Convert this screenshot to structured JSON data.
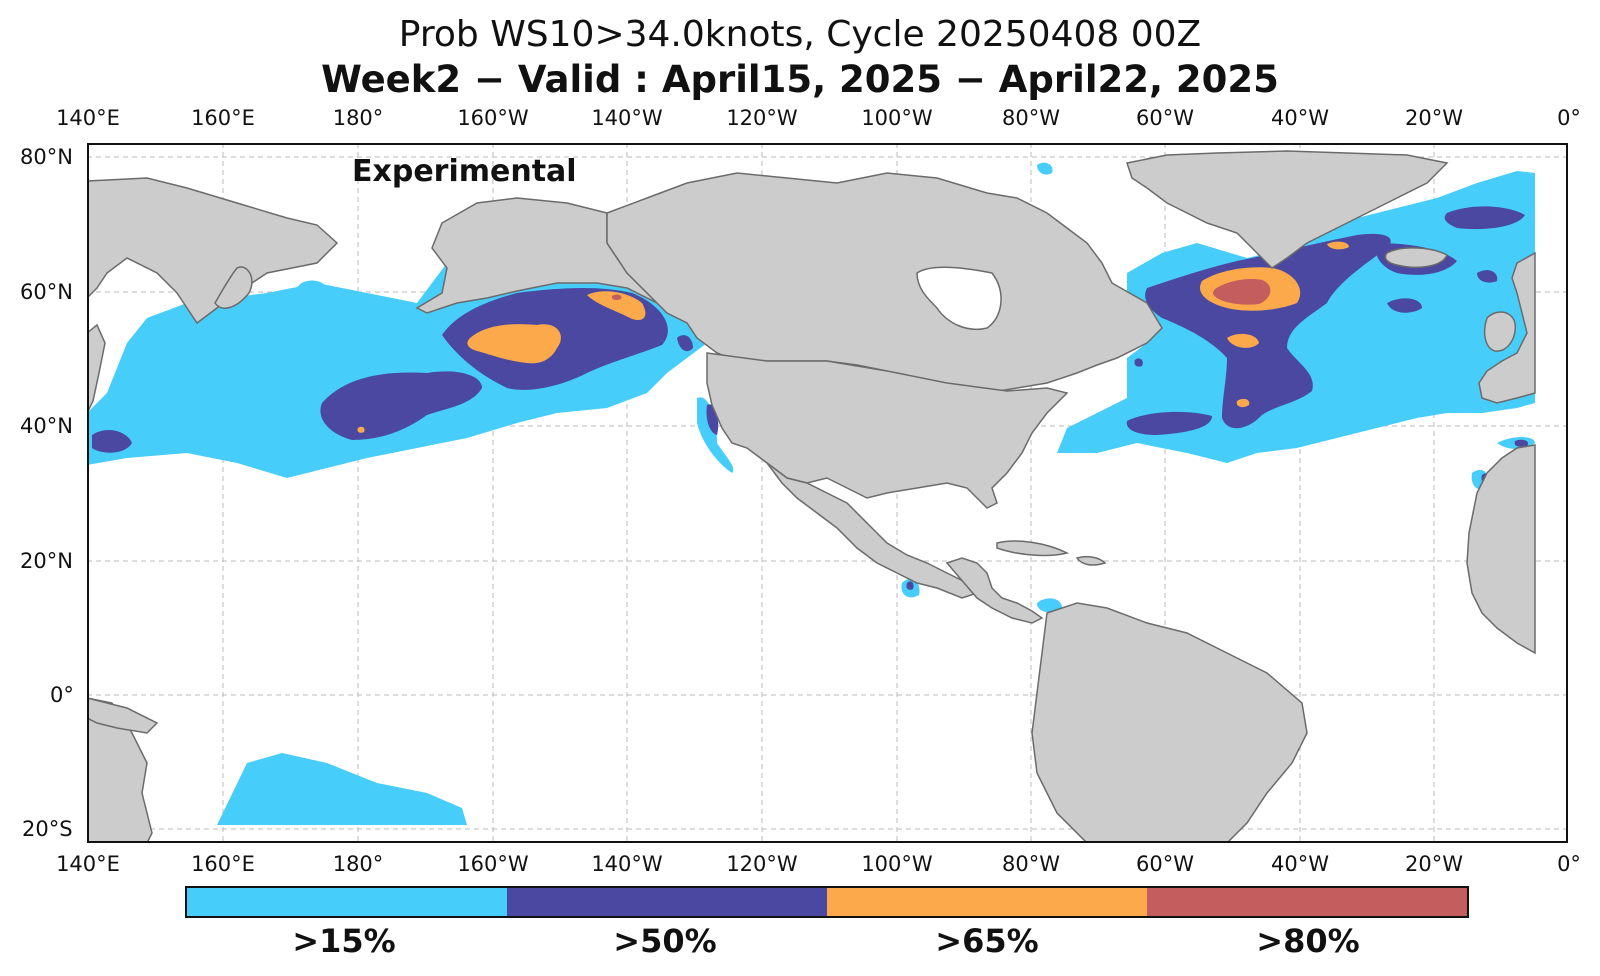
{
  "title": {
    "line1": "Prob WS10>34.0knots, Cycle 20250408 00Z",
    "line2": "Week2 − Valid : April15, 2025 − April22, 2025"
  },
  "stamp": "Experimental",
  "axes": {
    "lon_labels": [
      "140°E",
      "160°E",
      "180°",
      "160°W",
      "140°W",
      "120°W",
      "100°W",
      "80°W",
      "60°W",
      "40°W",
      "20°W",
      "0°"
    ],
    "lat_labels": [
      "80°N",
      "60°N",
      "40°N",
      "20°N",
      "0°",
      "20°S"
    ],
    "lon_range_deg": [
      140,
      360
    ],
    "lat_range_deg": [
      -22,
      82
    ],
    "grid": true
  },
  "colorbar": {
    "levels": [
      {
        "label": ">15%",
        "color": "#47cdfa"
      },
      {
        "label": ">50%",
        "color": "#4a48a0"
      },
      {
        "label": ">65%",
        "color": "#fba94b"
      },
      {
        "label": ">80%",
        "color": "#c45d5d"
      }
    ]
  },
  "colors": {
    "land": "#cccccc",
    "coast": "#6b6b6b",
    "ocean": "#ffffff",
    "grid": "#bbbbbb"
  }
}
